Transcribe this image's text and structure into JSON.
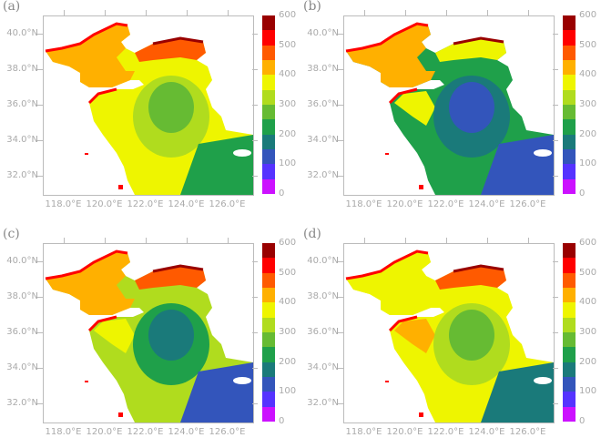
{
  "chart_data": [
    {
      "type": "heatmap",
      "panel": "(a)",
      "title": "(a)",
      "xlabel": "",
      "ylabel": "",
      "x_ticks": [
        "118.0°E",
        "120.0°E",
        "122.0°E",
        "124.0°E",
        "126.0°E"
      ],
      "y_ticks": [
        "40.0°N",
        "38.0°N",
        "36.0°N",
        "34.0°N",
        "32.0°N"
      ],
      "xlim": [
        117,
        127.2
      ],
      "ylim": [
        31,
        41
      ],
      "description": "Bohai/Yellow Sea field: high (450-600) in Bohai and northern coasts, decreasing to 200-300 toward southeast",
      "colorbar": {
        "min": 0,
        "max": 600,
        "step": 50,
        "labels": [
          "600",
          "500",
          "400",
          "300",
          "200",
          "100",
          "0"
        ]
      }
    },
    {
      "type": "heatmap",
      "panel": "(b)",
      "title": "(b)",
      "xlabel": "",
      "ylabel": "",
      "x_ticks": [
        "118.0°E",
        "120.0°E",
        "122.0°E",
        "124.0°E",
        "126.0°E"
      ],
      "y_ticks": [
        "40.0°N",
        "38.0°N",
        "36.0°N",
        "34.0°N",
        "32.0°N"
      ],
      "xlim": [
        117,
        127.2
      ],
      "ylim": [
        31,
        41
      ],
      "description": "Coastal high values (400-550); central Yellow Sea low 100-150, surrounded by 150-250",
      "colorbar": {
        "min": 0,
        "max": 600,
        "step": 50,
        "labels": [
          "600",
          "500",
          "400",
          "300",
          "200",
          "100",
          "0"
        ]
      }
    },
    {
      "type": "heatmap",
      "panel": "(c)",
      "title": "(c)",
      "xlabel": "",
      "ylabel": "",
      "x_ticks": [
        "118.0°E",
        "120.0°E",
        "122.0°E",
        "124.0°E",
        "126.0°E"
      ],
      "y_ticks": [
        "40.0°N",
        "38.0°N",
        "36.0°N",
        "34.0°N",
        "32.0°N"
      ],
      "xlim": [
        117,
        127.2
      ],
      "ylim": [
        31,
        41
      ],
      "description": "Bohai 350-450; central Yellow Sea 200-250 with 150-200 core; southeast corner 100-150",
      "colorbar": {
        "min": 0,
        "max": 600,
        "step": 50,
        "labels": [
          "600",
          "500",
          "400",
          "300",
          "200",
          "100",
          "0"
        ]
      }
    },
    {
      "type": "heatmap",
      "panel": "(d)",
      "title": "(d)",
      "xlabel": "",
      "ylabel": "",
      "x_ticks": [
        "118.0°E",
        "120.0°E",
        "122.0°E",
        "124.0°E",
        "126.0°E"
      ],
      "y_ticks": [
        "40.0°N",
        "38.0°N",
        "36.0°N",
        "34.0°N",
        "32.0°N"
      ],
      "xlim": [
        117,
        127.2
      ],
      "ylim": [
        31,
        41
      ],
      "description": "Mostly 300-400; northern coasts 450-600; southeast 150-250",
      "colorbar": {
        "min": 0,
        "max": 600,
        "step": 50,
        "labels": [
          "600",
          "500",
          "400",
          "300",
          "200",
          "100",
          "0"
        ]
      }
    }
  ],
  "colors": [
    "#990000",
    "#ff0000",
    "#ff5a00",
    "#ffb000",
    "#eef500",
    "#b0dc1e",
    "#66bb33",
    "#1fa04a",
    "#1a7a7a",
    "#3355bb",
    "#5533ff",
    "#cc11ff"
  ],
  "panels": [
    {
      "label": "(a)"
    },
    {
      "label": "(b)"
    },
    {
      "label": "(c)"
    },
    {
      "label": "(d)"
    }
  ],
  "axes": {
    "x_ticks": [
      "118.0°E",
      "120.0°E",
      "122.0°E",
      "124.0°E",
      "126.0°E"
    ],
    "y_ticks": [
      "40.0°N",
      "38.0°N",
      "36.0°N",
      "34.0°N",
      "32.0°N"
    ],
    "cbar_labels": [
      "600",
      "500",
      "400",
      "300",
      "200",
      "100",
      "0"
    ]
  }
}
